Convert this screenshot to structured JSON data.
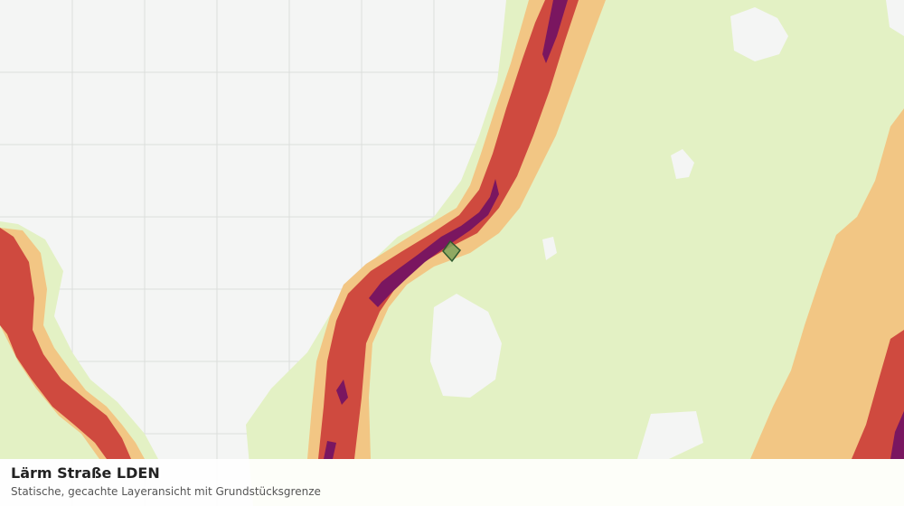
{
  "layer": {
    "title": "Lärm Straße LDEN",
    "subtitle": "Statische, gecachte Layeransicht mit Grundstücksgrenze"
  },
  "colors": {
    "background": "#f4f5f4",
    "grid": "#dcdedc",
    "noise_light": "#e3f1c4",
    "noise_low": "#f2c684",
    "noise_mid": "#cf4a3f",
    "noise_high": "#7a1660",
    "parcel_fill": "#7fa35c",
    "parcel_stroke": "#2f5a2f"
  },
  "icons": {
    "parcel": "parcel-boundary-icon"
  }
}
